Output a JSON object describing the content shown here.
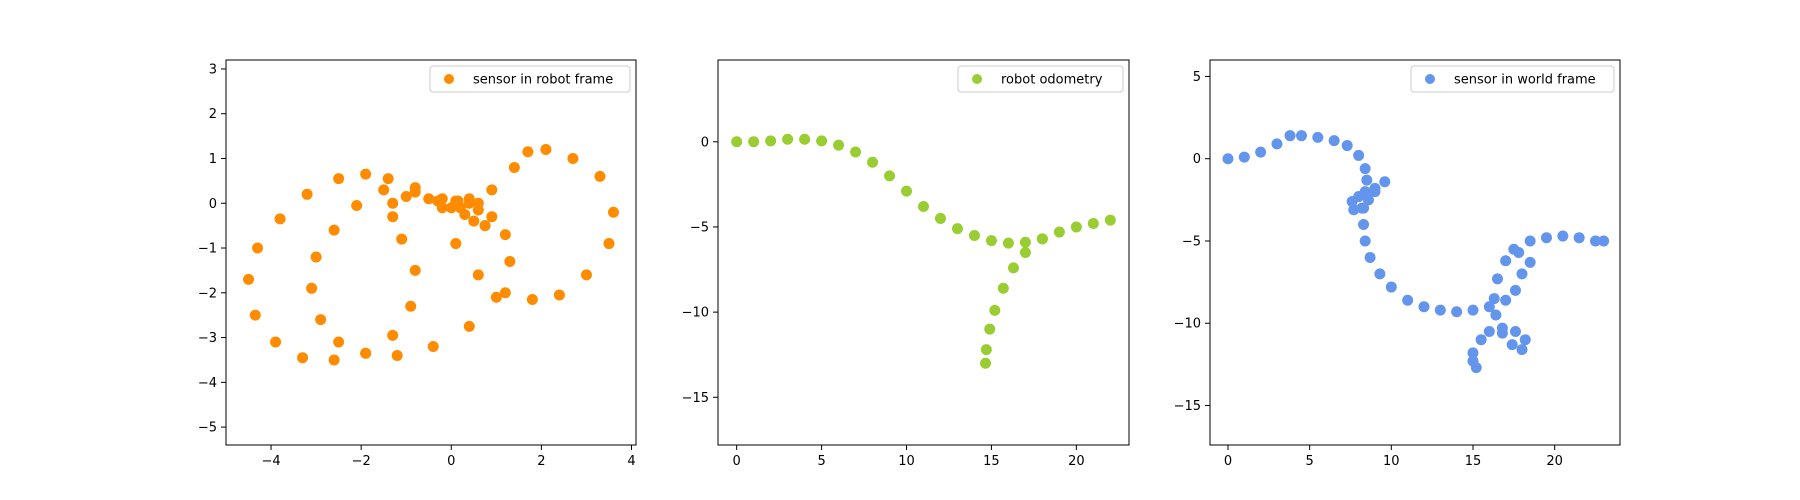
{
  "chart_data": [
    {
      "type": "scatter",
      "title": "",
      "xlabel": "",
      "ylabel": "",
      "xlim": [
        -5.0,
        4.1
      ],
      "ylim": [
        -5.4,
        3.2
      ],
      "xticks": [
        -4,
        -2,
        0,
        2,
        4
      ],
      "yticks": [
        -5,
        -4,
        -3,
        -2,
        -1,
        0,
        1,
        2,
        3
      ],
      "grid": false,
      "legend_position": "top-right",
      "series": [
        {
          "name": "sensor in robot frame",
          "color": "#ff8c00",
          "points": [
            [
              0.75,
              -0.5
            ],
            [
              0.5,
              -0.4
            ],
            [
              0.2,
              -0.1
            ],
            [
              -0.2,
              0.1
            ],
            [
              -0.8,
              0.35
            ],
            [
              -1.4,
              0.55
            ],
            [
              -1.9,
              0.65
            ],
            [
              -2.5,
              0.55
            ],
            [
              -3.2,
              0.2
            ],
            [
              -3.8,
              -0.35
            ],
            [
              -4.3,
              -1.0
            ],
            [
              -4.5,
              -1.7
            ],
            [
              -4.35,
              -2.5
            ],
            [
              -3.9,
              -3.1
            ],
            [
              -3.3,
              -3.45
            ],
            [
              -2.6,
              -3.5
            ],
            [
              -1.9,
              -3.35
            ],
            [
              -1.3,
              -2.95
            ],
            [
              -0.9,
              -2.3
            ],
            [
              -0.8,
              -1.5
            ],
            [
              -1.1,
              -0.8
            ],
            [
              -1.3,
              -0.3
            ],
            [
              -1.3,
              0.0
            ],
            [
              -1.0,
              0.15
            ],
            [
              -0.5,
              0.1
            ],
            [
              0.0,
              -0.1
            ],
            [
              0.3,
              -0.25
            ],
            [
              0.75,
              -0.5
            ],
            [
              0.6,
              -0.15
            ],
            [
              0.4,
              0.0
            ],
            [
              0.15,
              0.05
            ],
            [
              0.4,
              0.1
            ],
            [
              0.9,
              0.3
            ],
            [
              1.4,
              0.8
            ],
            [
              1.7,
              1.15
            ],
            [
              2.1,
              1.2
            ],
            [
              2.7,
              1.0
            ],
            [
              3.3,
              0.6
            ],
            [
              3.6,
              -0.2
            ],
            [
              3.5,
              -0.9
            ],
            [
              3.0,
              -1.6
            ],
            [
              2.4,
              -2.05
            ],
            [
              1.8,
              -2.15
            ],
            [
              1.2,
              -2.0
            ],
            [
              0.6,
              -1.6
            ],
            [
              0.1,
              -0.9
            ],
            [
              -0.2,
              -0.1
            ],
            [
              0.1,
              0.05
            ],
            [
              0.6,
              0.0
            ],
            [
              0.9,
              -0.3
            ],
            [
              1.2,
              -0.7
            ],
            [
              1.3,
              -1.3
            ],
            [
              1.0,
              -2.1
            ],
            [
              0.4,
              -2.75
            ],
            [
              -0.4,
              -3.2
            ],
            [
              -1.2,
              -3.4
            ],
            [
              -1.9,
              -3.35
            ],
            [
              -2.5,
              -3.1
            ],
            [
              -2.9,
              -2.6
            ],
            [
              -3.1,
              -1.9
            ],
            [
              -3.0,
              -1.2
            ],
            [
              -2.6,
              -0.6
            ],
            [
              -2.1,
              -0.05
            ],
            [
              -1.5,
              0.3
            ],
            [
              -0.8,
              0.25
            ],
            [
              -0.3,
              0.05
            ]
          ]
        }
      ]
    },
    {
      "type": "scatter",
      "title": "",
      "xlabel": "",
      "ylabel": "",
      "xlim": [
        -1.1,
        23.1
      ],
      "ylim": [
        -17.8,
        4.8
      ],
      "xticks": [
        0,
        5,
        10,
        15,
        20
      ],
      "yticks": [
        -15,
        -10,
        -5,
        0
      ],
      "grid": false,
      "legend_position": "top-right",
      "series": [
        {
          "name": "robot odometry",
          "color": "#9acd32",
          "points": [
            [
              0,
              0
            ],
            [
              1,
              0
            ],
            [
              2,
              0.05
            ],
            [
              3,
              0.15
            ],
            [
              4,
              0.15
            ],
            [
              5,
              0.05
            ],
            [
              6,
              -0.2
            ],
            [
              7,
              -0.6
            ],
            [
              8,
              -1.2
            ],
            [
              9,
              -2.0
            ],
            [
              10,
              -2.9
            ],
            [
              11,
              -3.8
            ],
            [
              12,
              -4.5
            ],
            [
              13,
              -5.1
            ],
            [
              14,
              -5.5
            ],
            [
              15,
              -5.8
            ],
            [
              16,
              -5.95
            ],
            [
              17,
              -5.9
            ],
            [
              18,
              -5.7
            ],
            [
              19,
              -5.3
            ],
            [
              20,
              -5.0
            ],
            [
              21,
              -4.8
            ],
            [
              22,
              -4.6
            ],
            [
              18,
              -5.7
            ],
            [
              17,
              -6.5
            ],
            [
              16.3,
              -7.4
            ],
            [
              15.7,
              -8.6
            ],
            [
              15.2,
              -9.9
            ],
            [
              14.9,
              -11.0
            ],
            [
              14.7,
              -12.2
            ],
            [
              14.65,
              -13.0
            ]
          ]
        }
      ]
    },
    {
      "type": "scatter",
      "title": "",
      "xlabel": "",
      "ylabel": "",
      "xlim": [
        -1.1,
        24.0
      ],
      "ylim": [
        -17.4,
        6.0
      ],
      "xticks": [
        0,
        5,
        10,
        15,
        20
      ],
      "yticks": [
        -15,
        -10,
        -5,
        0,
        5
      ],
      "grid": false,
      "legend_position": "top-right",
      "series": [
        {
          "name": "sensor in world frame",
          "color": "#6495ed",
          "points": [
            [
              0,
              0
            ],
            [
              1,
              0.1
            ],
            [
              2,
              0.4
            ],
            [
              3,
              0.9
            ],
            [
              3.8,
              1.4
            ],
            [
              4.5,
              1.4
            ],
            [
              5.5,
              1.3
            ],
            [
              6.5,
              1.1
            ],
            [
              7.3,
              0.8
            ],
            [
              8,
              0.2
            ],
            [
              8.4,
              -0.6
            ],
            [
              8.5,
              -1.3
            ],
            [
              8.4,
              -2.0
            ],
            [
              8.0,
              -2.3
            ],
            [
              7.6,
              -2.6
            ],
            [
              7.7,
              -3.1
            ],
            [
              8.2,
              -3.0
            ],
            [
              8.6,
              -2.5
            ],
            [
              9.0,
              -2.0
            ],
            [
              9.6,
              -1.4
            ],
            [
              9.0,
              -1.8
            ],
            [
              8.5,
              -2.2
            ],
            [
              8.3,
              -3.0
            ],
            [
              8.3,
              -4.0
            ],
            [
              8.4,
              -5.0
            ],
            [
              8.7,
              -6.0
            ],
            [
              9.3,
              -7.0
            ],
            [
              10,
              -7.8
            ],
            [
              11,
              -8.6
            ],
            [
              12,
              -9.0
            ],
            [
              13,
              -9.2
            ],
            [
              14,
              -9.3
            ],
            [
              15,
              -9.2
            ],
            [
              16,
              -9.0
            ],
            [
              17,
              -8.6
            ],
            [
              17.6,
              -8.0
            ],
            [
              18,
              -7.0
            ],
            [
              18.5,
              -6.3
            ],
            [
              17.8,
              -5.7
            ],
            [
              17.0,
              -6.2
            ],
            [
              16.5,
              -7.3
            ],
            [
              16.3,
              -8.5
            ],
            [
              16.4,
              -9.5
            ],
            [
              16.8,
              -10.3
            ],
            [
              17.6,
              -10.5
            ],
            [
              18.2,
              -11.0
            ],
            [
              18.0,
              -11.6
            ],
            [
              17.4,
              -11.3
            ],
            [
              16.8,
              -10.6
            ],
            [
              16.0,
              -10.5
            ],
            [
              15.5,
              -11.0
            ],
            [
              15.0,
              -11.8
            ],
            [
              15.0,
              -12.3
            ],
            [
              15.2,
              -12.7
            ],
            [
              17.5,
              -5.5
            ],
            [
              18.5,
              -5.0
            ],
            [
              19.5,
              -4.8
            ],
            [
              20.5,
              -4.7
            ],
            [
              21.5,
              -4.8
            ],
            [
              22.5,
              -5.0
            ],
            [
              23,
              -5.0
            ]
          ]
        }
      ]
    }
  ]
}
